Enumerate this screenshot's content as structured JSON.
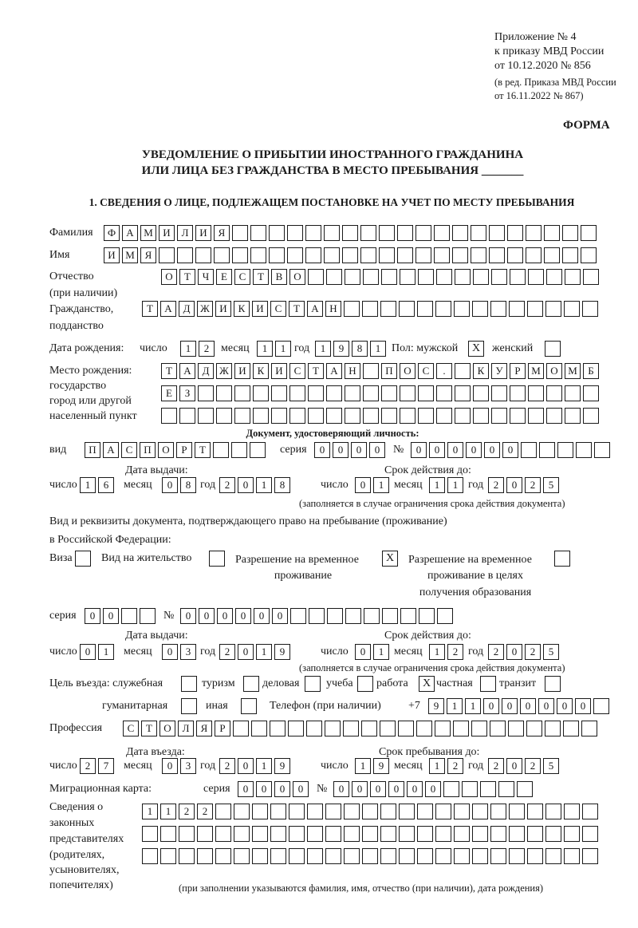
{
  "header": {
    "appendix": "Приложение № 4",
    "order": "к приказу МВД России",
    "order_date": "от 10.12.2020 № 856",
    "revision_1": "(в ред. Приказа МВД России",
    "revision_2": "от 16.11.2022 № 867)",
    "form_label": "ФОРМА"
  },
  "title": {
    "line1": "УВЕДОМЛЕНИЕ О ПРИБЫТИИ ИНОСТРАННОГО ГРАЖДАНИНА",
    "line2": "ИЛИ ЛИЦА БЕЗ ГРАЖДАНСТВА В МЕСТО ПРЕБЫВАНИЯ _______"
  },
  "section1": {
    "heading": "1. СВЕДЕНИЯ О ЛИЦЕ, ПОДЛЕЖАЩЕМ ПОСТАНОВКЕ НА УЧЕТ ПО МЕСТУ ПРЕБЫВАНИЯ",
    "surname": {
      "label": "Фамилия",
      "cells": [
        "Ф",
        "А",
        "М",
        "И",
        "Л",
        "И",
        "Я",
        "",
        "",
        "",
        "",
        "",
        "",
        "",
        "",
        "",
        "",
        "",
        "",
        "",
        "",
        "",
        "",
        "",
        "",
        "",
        ""
      ]
    },
    "name": {
      "label": "Имя",
      "cells": [
        "И",
        "М",
        "Я",
        "",
        "",
        "",
        "",
        "",
        "",
        "",
        "",
        "",
        "",
        "",
        "",
        "",
        "",
        "",
        "",
        "",
        "",
        "",
        "",
        "",
        "",
        "",
        ""
      ]
    },
    "patronymic": {
      "label": "Отчество",
      "label2": "(при наличии)",
      "cells": [
        "О",
        "Т",
        "Ч",
        "Е",
        "С",
        "Т",
        "В",
        "О",
        "",
        "",
        "",
        "",
        "",
        "",
        "",
        "",
        "",
        "",
        "",
        "",
        "",
        "",
        "",
        ""
      ]
    },
    "citizenship": {
      "label": "Гражданство,",
      "label2": "подданство",
      "cells": [
        "Т",
        "А",
        "Д",
        "Ж",
        "И",
        "К",
        "И",
        "С",
        "Т",
        "А",
        "Н",
        "",
        "",
        "",
        "",
        "",
        "",
        "",
        "",
        "",
        "",
        "",
        "",
        "",
        ""
      ]
    },
    "birth_date": {
      "label": "Дата рождения:",
      "day_label": "число",
      "month_label": "месяц",
      "year_label": "год",
      "day": [
        "1",
        "2"
      ],
      "month": [
        "1",
        "1"
      ],
      "year": [
        "1",
        "9",
        "8",
        "1"
      ],
      "sex_label": "Пол: мужской",
      "male": "X",
      "female_label": "женский",
      "female": ""
    },
    "birth_place": {
      "label1": "Место рождения:",
      "label2": "государство",
      "label3": "город или другой",
      "label4": "населенный пункт",
      "row1": [
        "Т",
        "А",
        "Д",
        "Ж",
        "И",
        "К",
        "И",
        "С",
        "Т",
        "А",
        "Н",
        "",
        "П",
        "О",
        "С",
        ".",
        "",
        "К",
        "У",
        "Р",
        "М",
        "О",
        "М",
        "Б"
      ],
      "row2": [
        "Е",
        "З",
        "",
        "",
        "",
        "",
        "",
        "",
        "",
        "",
        "",
        "",
        "",
        "",
        "",
        "",
        "",
        "",
        "",
        "",
        "",
        "",
        "",
        ""
      ],
      "row3": [
        "",
        "",
        "",
        "",
        "",
        "",
        "",
        "",
        "",
        "",
        "",
        "",
        "",
        "",
        "",
        "",
        "",
        "",
        "",
        "",
        "",
        "",
        "",
        ""
      ]
    },
    "id_doc": {
      "heading": "Документ, удостоверяющий личность:",
      "type_label": "вид",
      "type": [
        "П",
        "А",
        "С",
        "П",
        "О",
        "Р",
        "Т",
        "",
        "",
        ""
      ],
      "series_label": "серия",
      "series": [
        "0",
        "0",
        "0",
        "0"
      ],
      "number_label": "№",
      "number": [
        "0",
        "0",
        "0",
        "0",
        "0",
        "0",
        "",
        "",
        "",
        "",
        ""
      ],
      "issue_label": "Дата выдачи:",
      "expiry_label": "Срок действия до:",
      "day_label": "число",
      "month_label": "месяц",
      "year_label": "год",
      "issue_day": [
        "1",
        "6"
      ],
      "issue_month": [
        "0",
        "8"
      ],
      "issue_year": [
        "2",
        "0",
        "1",
        "8"
      ],
      "expiry_day": [
        "0",
        "1"
      ],
      "expiry_month": [
        "1",
        "1"
      ],
      "expiry_year": [
        "2",
        "0",
        "2",
        "5"
      ],
      "note": "(заполняется в случае ограничения срока действия документа)"
    },
    "stay_doc": {
      "label1": "Вид и реквизиты документа, подтверждающего право на пребывание (проживание)",
      "label2": "в Российской Федерации:",
      "visa_label": "Виза",
      "visa": "",
      "residence_label": "Вид на жительство",
      "residence": "",
      "trp_label1": "Разрешение на временное",
      "trp_label2": "проживание",
      "trp": "X",
      "trp_edu_label1": "Разрешение на временное",
      "trp_edu_label2": "проживание в целях",
      "trp_edu_label3": "получения образования",
      "trp_edu": "",
      "series_label": "серия",
      "series": [
        "0",
        "0",
        "",
        ""
      ],
      "number_label": "№",
      "number": [
        "0",
        "0",
        "0",
        "0",
        "0",
        "0",
        "",
        "",
        "",
        "",
        "",
        "",
        "",
        "",
        ""
      ],
      "issue_label": "Дата выдачи:",
      "expiry_label": "Срок действия до:",
      "day_label": "число",
      "month_label": "месяц",
      "year_label": "год",
      "issue_day": [
        "0",
        "1"
      ],
      "issue_month": [
        "0",
        "3"
      ],
      "issue_year": [
        "2",
        "0",
        "1",
        "9"
      ],
      "expiry_day": [
        "0",
        "1"
      ],
      "expiry_month": [
        "1",
        "2"
      ],
      "expiry_year": [
        "2",
        "0",
        "2",
        "5"
      ],
      "note": "(заполняется в случае ограничения срока действия документа)"
    },
    "purpose": {
      "label": "Цель въезда: служебная",
      "official": "",
      "tourism_label": "туризм",
      "tourism": "",
      "business_label": "деловая",
      "business": "",
      "study_label": "учеба",
      "study": "",
      "work_label": "работа",
      "work": "X",
      "private_label": "частная",
      "private": "",
      "transit_label": "транзит",
      "transit": "",
      "humanitarian_label": "гуманитарная",
      "humanitarian": "",
      "other_label": "иная",
      "other": ""
    },
    "phone": {
      "label": "Телефон (при наличии)",
      "prefix": "+7",
      "cells": [
        "9",
        "1",
        "1",
        "0",
        "0",
        "0",
        "0",
        "0",
        "0",
        ""
      ]
    },
    "profession": {
      "label": "Профессия",
      "cells": [
        "С",
        "Т",
        "О",
        "Л",
        "Я",
        "Р",
        "",
        "",
        "",
        "",
        "",
        "",
        "",
        "",
        "",
        "",
        "",
        "",
        "",
        "",
        "",
        "",
        "",
        "",
        "",
        ""
      ]
    },
    "entry": {
      "entry_label": "Дата въезда:",
      "stay_label": "Срок пребывания до:",
      "day_label": "число",
      "month_label": "месяц",
      "year_label": "год",
      "entry_day": [
        "2",
        "7"
      ],
      "entry_month": [
        "0",
        "3"
      ],
      "entry_year": [
        "2",
        "0",
        "1",
        "9"
      ],
      "stay_day": [
        "1",
        "9"
      ],
      "stay_month": [
        "1",
        "2"
      ],
      "stay_year": [
        "2",
        "0",
        "2",
        "5"
      ]
    },
    "migration_card": {
      "label": "Миграционная карта:",
      "series_label": "серия",
      "series": [
        "0",
        "0",
        "0",
        "0"
      ],
      "number_label": "№",
      "number": [
        "0",
        "0",
        "0",
        "0",
        "0",
        "0",
        "",
        "",
        "",
        "",
        ""
      ]
    },
    "representatives": {
      "label1": "Сведения о",
      "label2": "законных",
      "label3": "представителях",
      "label4": "(родителях,",
      "label5": "усыновителях,",
      "label6": "попечителях)",
      "row1": [
        "1",
        "1",
        "2",
        "2",
        "",
        "",
        "",
        "",
        "",
        "",
        "",
        "",
        "",
        "",
        "",
        "",
        "",
        "",
        "",
        "",
        "",
        "",
        "",
        "",
        ""
      ],
      "row2": [
        "",
        "",
        "",
        "",
        "",
        "",
        "",
        "",
        "",
        "",
        "",
        "",
        "",
        "",
        "",
        "",
        "",
        "",
        "",
        "",
        "",
        "",
        "",
        "",
        ""
      ],
      "row3": [
        "",
        "",
        "",
        "",
        "",
        "",
        "",
        "",
        "",
        "",
        "",
        "",
        "",
        "",
        "",
        "",
        "",
        "",
        "",
        "",
        "",
        "",
        "",
        "",
        ""
      ],
      "note": "(при заполнении указываются фамилия, имя, отчество (при наличии), дата рождения)"
    }
  }
}
